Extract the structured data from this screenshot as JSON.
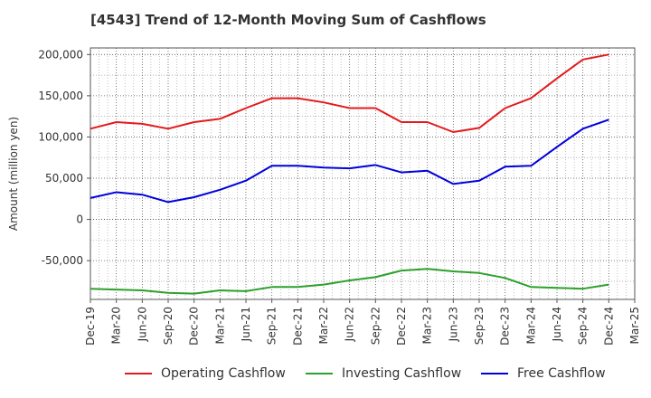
{
  "chart_data": {
    "type": "line",
    "title": "[4543]  Trend of 12-Month Moving Sum of Cashflows",
    "xlabel": "",
    "ylabel": "Amount (million yen)",
    "categories": [
      "Dec-19",
      "Mar-20",
      "Jun-20",
      "Sep-20",
      "Dec-20",
      "Mar-21",
      "Jun-21",
      "Sep-21",
      "Dec-21",
      "Mar-22",
      "Jun-22",
      "Sep-22",
      "Dec-22",
      "Mar-23",
      "Jun-23",
      "Sep-23",
      "Dec-23",
      "Mar-24",
      "Jun-24",
      "Sep-24",
      "Dec-24",
      "Mar-25"
    ],
    "yticks": [
      -50000,
      0,
      50000,
      100000,
      150000,
      200000
    ],
    "ytick_labels": [
      "-50,000",
      "0",
      "50,000",
      "100,000",
      "150,000",
      "200,000"
    ],
    "ylim": [
      -97000,
      208000
    ],
    "grid": true,
    "legend_position": "bottom",
    "series": [
      {
        "name": "Operating Cashflow",
        "color": "#e31a1c",
        "values": [
          110000,
          118000,
          116000,
          110000,
          118000,
          122000,
          135000,
          147000,
          147000,
          142000,
          135000,
          135000,
          118000,
          118000,
          106000,
          111000,
          135000,
          147000,
          171000,
          194000,
          200000,
          null
        ]
      },
      {
        "name": "Investing Cashflow",
        "color": "#2ca02c",
        "values": [
          -84000,
          -85000,
          -86000,
          -89000,
          -90000,
          -86000,
          -87000,
          -82000,
          -82000,
          -79000,
          -74000,
          -70000,
          -62000,
          -60000,
          -63000,
          -65000,
          -71000,
          -82000,
          -83000,
          -84000,
          -79000,
          null
        ]
      },
      {
        "name": "Free Cashflow",
        "color": "#0000dd",
        "values": [
          26000,
          33000,
          30000,
          21000,
          27000,
          36000,
          47000,
          65000,
          65000,
          63000,
          62000,
          66000,
          57000,
          59000,
          43000,
          47000,
          64000,
          65000,
          88000,
          110000,
          121000,
          null
        ]
      }
    ]
  }
}
